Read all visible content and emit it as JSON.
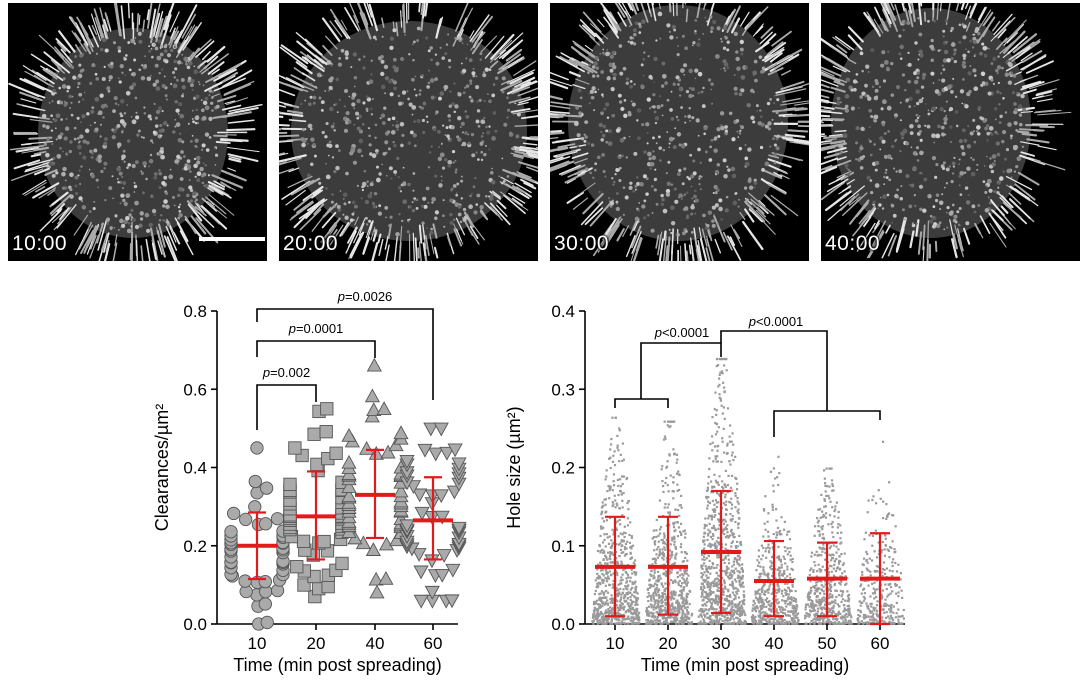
{
  "micrographs": [
    {
      "timestamp": "10:00"
    },
    {
      "timestamp": "20:00"
    },
    {
      "timestamp": "30:00"
    },
    {
      "timestamp": "40:00"
    }
  ],
  "chart_data": [
    {
      "type": "scatter",
      "categories": [
        "10",
        "20",
        "40",
        "60"
      ],
      "xlabel": "Time (min post spreading)",
      "ylabel": "Clearances/µm²",
      "ylim": [
        0,
        0.8
      ],
      "yticks": [
        "0.0",
        "0.2",
        "0.4",
        "0.6",
        "0.8"
      ],
      "markers": [
        "circle",
        "square",
        "triangle-up",
        "triangle-down"
      ],
      "marker_fill": "#aaaaaa",
      "summary_color": "#e31a1c",
      "series": [
        {
          "category": "10",
          "mean": 0.2,
          "sd_low": 0.115,
          "sd_high": 0.285,
          "min": 0.0,
          "max": 0.45,
          "n": 48
        },
        {
          "category": "20",
          "mean": 0.275,
          "sd_low": 0.165,
          "sd_high": 0.39,
          "min": 0.07,
          "max": 0.55,
          "n": 55
        },
        {
          "category": "40",
          "mean": 0.33,
          "sd_low": 0.22,
          "sd_high": 0.445,
          "min": 0.08,
          "max": 0.66,
          "n": 55
        },
        {
          "category": "60",
          "mean": 0.265,
          "sd_low": 0.165,
          "sd_high": 0.375,
          "min": 0.06,
          "max": 0.5,
          "n": 55
        }
      ],
      "comparisons": [
        {
          "from": "10",
          "to": "20",
          "label": "p=0.002"
        },
        {
          "from": "10",
          "to": "40",
          "label": "p=0.0001"
        },
        {
          "from": "10",
          "to": "60",
          "label": "p=0.0026"
        }
      ]
    },
    {
      "type": "scatter",
      "categories": [
        "10",
        "20",
        "30",
        "40",
        "50",
        "60"
      ],
      "xlabel": "Time (min post spreading)",
      "ylabel": "Hole size (µm²)",
      "ylim": [
        0,
        0.4
      ],
      "yticks": [
        "0.0",
        "0.1",
        "0.2",
        "0.3",
        "0.4"
      ],
      "marker_fill": "#999999",
      "summary_color": "#e31a1c",
      "series": [
        {
          "category": "10",
          "mean": 0.073,
          "sd_low": 0.01,
          "sd_high": 0.137,
          "max": 0.265,
          "n": 700
        },
        {
          "category": "20",
          "mean": 0.073,
          "sd_low": 0.012,
          "sd_high": 0.137,
          "max": 0.26,
          "n": 650
        },
        {
          "category": "30",
          "mean": 0.092,
          "sd_low": 0.014,
          "sd_high": 0.17,
          "max": 0.34,
          "n": 850
        },
        {
          "category": "40",
          "mean": 0.055,
          "sd_low": 0.01,
          "sd_high": 0.106,
          "max": 0.215,
          "n": 500
        },
        {
          "category": "50",
          "mean": 0.058,
          "sd_low": 0.01,
          "sd_high": 0.104,
          "max": 0.2,
          "n": 500
        },
        {
          "category": "60",
          "mean": 0.058,
          "sd_low": 0.0,
          "sd_high": 0.116,
          "max": 0.25,
          "n": 300
        }
      ],
      "comparisons": [
        {
          "groups_a": [
            "10",
            "20"
          ],
          "groups_b": [
            "30"
          ],
          "label": "p<0.0001"
        },
        {
          "groups_a": [
            "30"
          ],
          "groups_b": [
            "40",
            "50",
            "60"
          ],
          "label": "p<0.0001"
        }
      ]
    }
  ]
}
